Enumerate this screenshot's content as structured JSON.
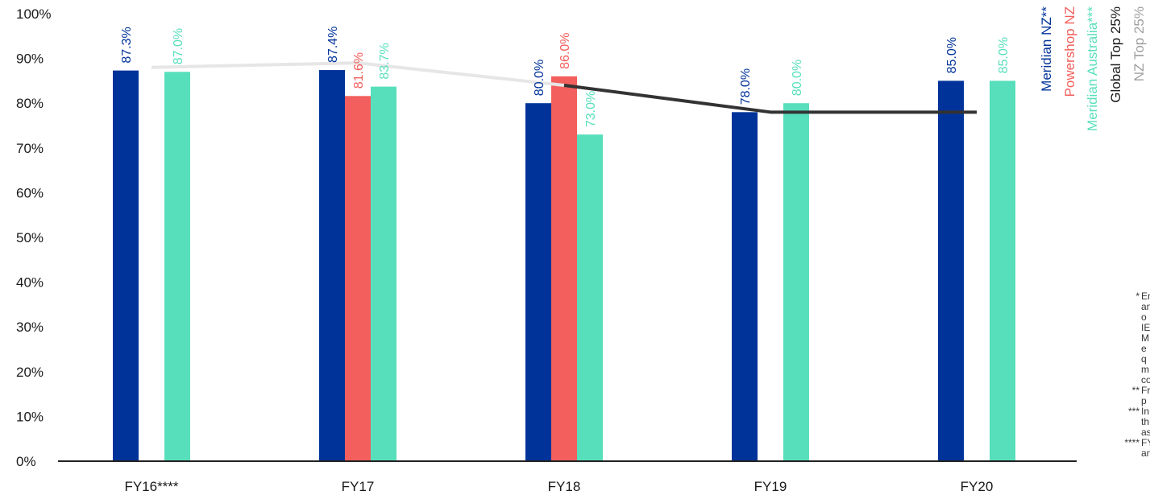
{
  "chart_data": {
    "type": "bar",
    "categories": [
      "FY16****",
      "FY17",
      "FY18",
      "FY19",
      "FY20"
    ],
    "ylim": [
      0,
      100
    ],
    "yticks": [
      "0%",
      "10%",
      "20%",
      "30%",
      "40%",
      "50%",
      "60%",
      "70%",
      "80%",
      "90%",
      "100%"
    ],
    "series": [
      {
        "name": "Meridian NZ**",
        "color": "#00339a",
        "values": [
          87.3,
          87.4,
          80.0,
          78.0,
          85.0
        ],
        "labels": [
          "87.3%",
          "87.4%",
          "80.0%",
          "78.0%",
          "85.0%"
        ]
      },
      {
        "name": "Powershop NZ",
        "color": "#f25f5c",
        "values": [
          null,
          81.6,
          86.0,
          null,
          null
        ],
        "labels": [
          "",
          "81.6%",
          "86.0%",
          "",
          ""
        ]
      },
      {
        "name": "Meridian Australia***",
        "color": "#57dfbb",
        "values": [
          87.0,
          83.7,
          73.0,
          80.0,
          85.0
        ],
        "labels": [
          "87.0%",
          "83.7%",
          "73.0%",
          "80.0%",
          "85.0%"
        ]
      }
    ],
    "lines": [
      {
        "name": "Global Top 25%",
        "color": "#e6e6e6",
        "values": [
          88.0,
          89.0,
          84.0,
          null,
          null
        ]
      },
      {
        "name": "NZ Top 25%",
        "color": "#333333",
        "values": [
          null,
          null,
          84.0,
          78.0,
          78.0
        ]
      }
    ],
    "legend": [
      {
        "label": "Meridian NZ**",
        "color": "#00339a"
      },
      {
        "label": "Powershop NZ",
        "color": "#f25f5c"
      },
      {
        "label": "Meridian Australia***",
        "color": "#57dfbb"
      },
      {
        "label": "Global Top 25%",
        "color": "#1a1a1a"
      },
      {
        "label": "NZ Top 25%",
        "color": "#9e9e9e"
      }
    ]
  },
  "footnotes": [
    {
      "mark": "*",
      "lines": [
        "En",
        "an",
        "o",
        "IE",
        "M",
        "e",
        "q",
        "m",
        "co"
      ]
    },
    {
      "mark": "**",
      "lines": [
        "Fr",
        "p"
      ]
    },
    {
      "mark": "***",
      "lines": [
        "In",
        "th",
        "as"
      ]
    },
    {
      "mark": "****",
      "lines": [
        "FY",
        "an"
      ]
    }
  ]
}
